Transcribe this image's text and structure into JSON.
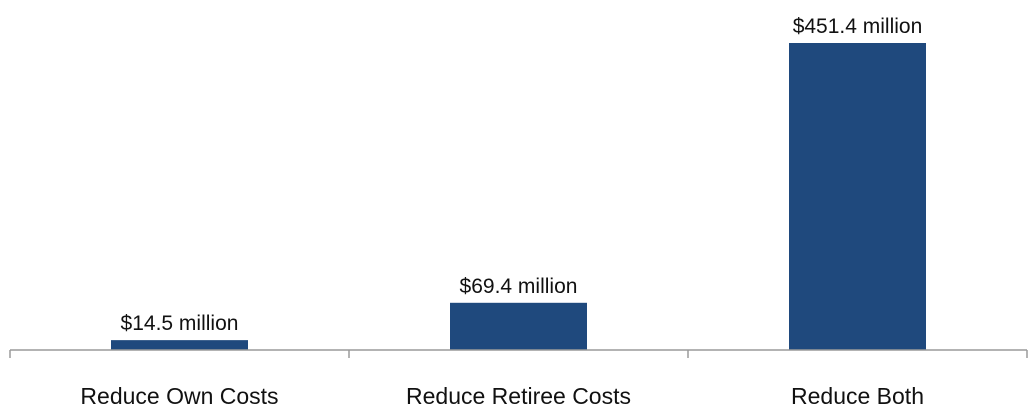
{
  "chart_data": {
    "type": "bar",
    "categories": [
      "Reduce Own Costs",
      "Reduce Retiree Costs",
      "Reduce Both"
    ],
    "values": [
      14.5,
      69.4,
      451.4
    ],
    "data_labels": [
      "$14.5 million",
      "$69.4 million",
      "$451.4 million"
    ],
    "title": "",
    "xlabel": "",
    "ylabel": "",
    "ylim": [
      0,
      451.4
    ],
    "grid": false,
    "legend": "none",
    "bar_color": "#1f497d",
    "axis_color": "#9a9a9a"
  }
}
